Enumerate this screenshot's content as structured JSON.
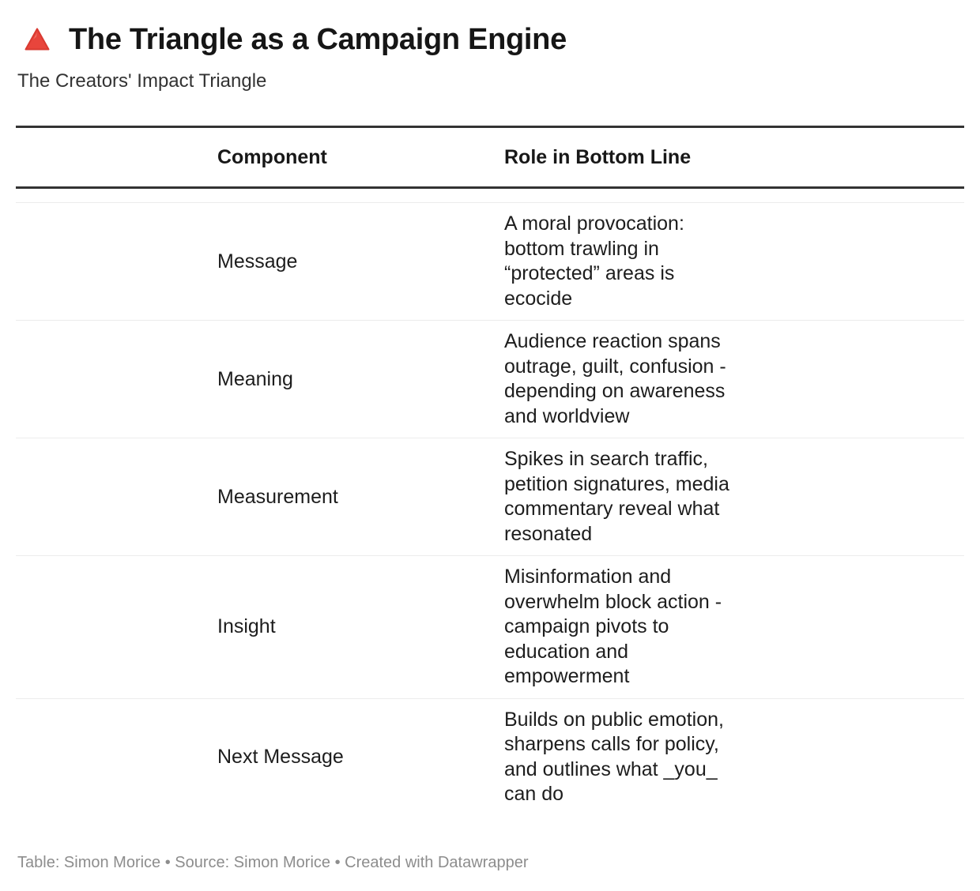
{
  "header": {
    "icon": "red-triangle-icon",
    "title": "The Triangle as a Campaign Engine",
    "subtitle": "The Creators' Impact Triangle"
  },
  "table": {
    "columns": [
      "Component",
      "Role in Bottom Line"
    ],
    "rows": [
      {
        "component": "Message",
        "role": "A moral provocation:\nbottom trawling in\n“protected” areas is\necocide"
      },
      {
        "component": "Meaning",
        "role": "Audience reaction spans\noutrage, guilt, confusion -\ndepending on awareness\nand worldview"
      },
      {
        "component": "Measurement",
        "role": "Spikes in search traffic,\npetition signatures, media\ncommentary reveal what\nresonated"
      },
      {
        "component": "Insight",
        "role": "Misinformation and\noverwhelm block action -\ncampaign pivots to\neducation and\nempowerment"
      },
      {
        "component": "Next Message",
        "role": "Builds on public emotion,\nsharpens calls for policy,\nand outlines what _you_\ncan do"
      }
    ]
  },
  "footer": {
    "text": "Table: Simon Morice • Source: Simon Morice • Created with Datawrapper"
  },
  "colors": {
    "accent_triangle": "#e8453c",
    "thick_border": "#333333",
    "thin_border": "#ececec",
    "body_text": "#1d1d1d",
    "footer_text": "#8d8d8d"
  },
  "chart_data": {
    "type": "table",
    "title": "The Triangle as a Campaign Engine",
    "subtitle": "The Creators' Impact Triangle",
    "columns": [
      "Component",
      "Role in Bottom Line"
    ],
    "rows": [
      [
        "Message",
        "A moral provocation: bottom trawling in “protected” areas is ecocide"
      ],
      [
        "Meaning",
        "Audience reaction spans outrage, guilt, confusion - depending on awareness and worldview"
      ],
      [
        "Measurement",
        "Spikes in search traffic, petition signatures, media commentary reveal what resonated"
      ],
      [
        "Insight",
        "Misinformation and overwhelm block action - campaign pivots to education and empowerment"
      ],
      [
        "Next Message",
        "Builds on public emotion, sharpens calls for policy, and outlines what _you_ can do"
      ]
    ],
    "footer": "Table: Simon Morice • Source: Simon Morice • Created with Datawrapper",
    "layout_hints": {
      "grid": "off",
      "legend": "none",
      "header_rule": "thick-top-and-bottom",
      "row_rules": "thin-light-gray"
    }
  }
}
